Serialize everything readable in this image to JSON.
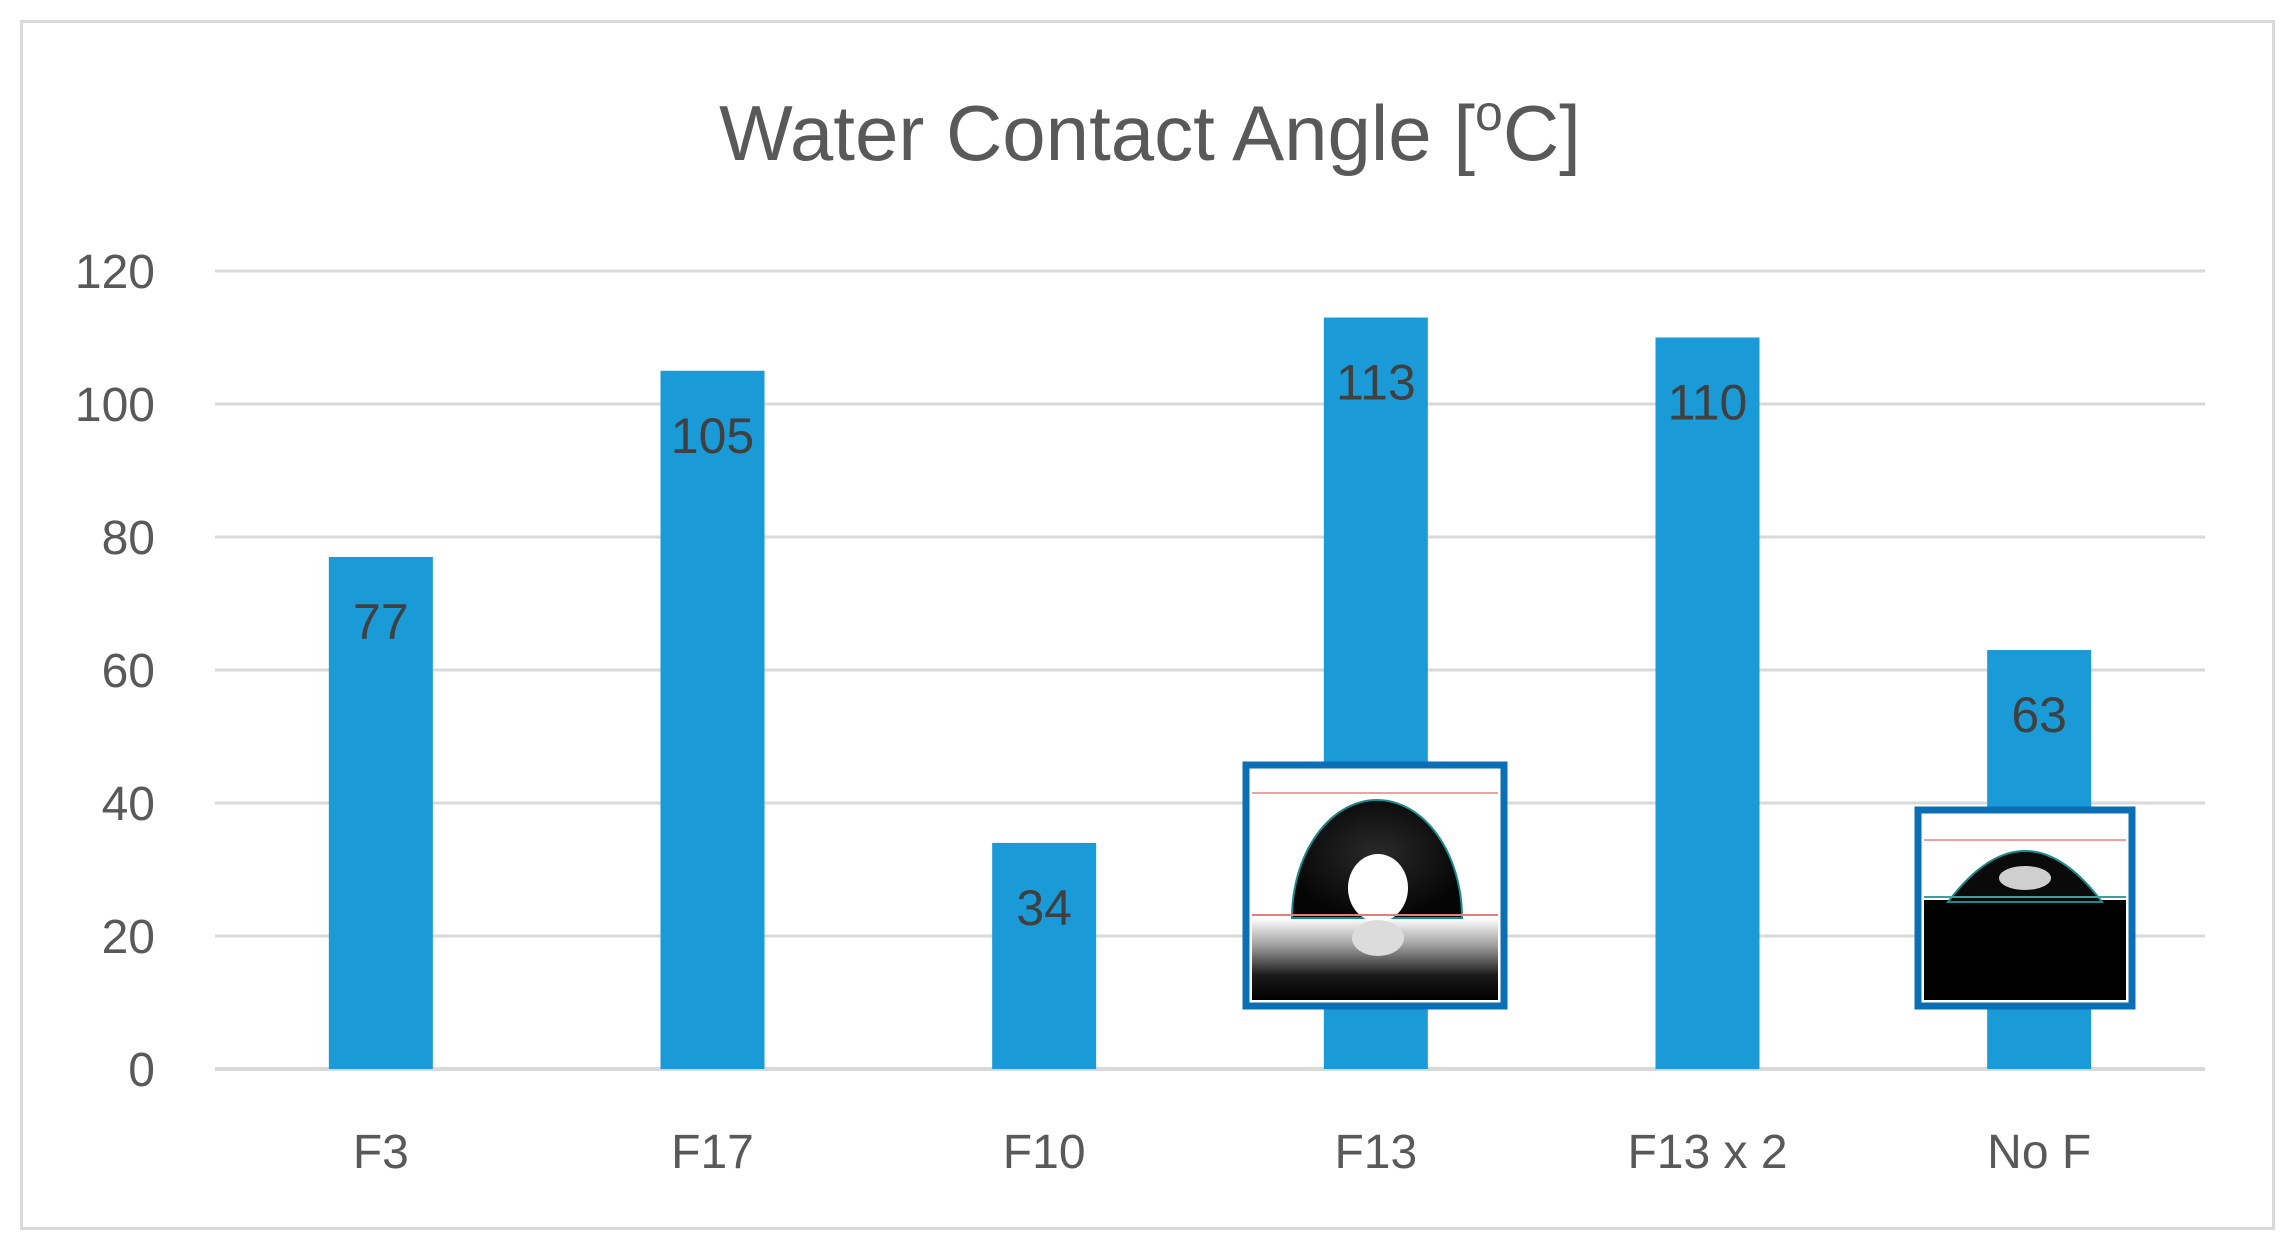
{
  "chart_data": {
    "type": "bar",
    "title_main": "Water Contact Angle [",
    "title_sup": "o",
    "title_end": "C]",
    "categories": [
      "F3",
      "F17",
      "F10",
      "F13",
      "F13 x 2",
      "No F"
    ],
    "values": [
      77,
      105,
      34,
      113,
      110,
      63
    ],
    "ylim": [
      0,
      120
    ],
    "yticks": [
      0,
      20,
      40,
      60,
      80,
      100,
      120
    ],
    "grid": true,
    "legend": "none",
    "bar_color": "#1a9ad6",
    "inset_images": [
      {
        "category": "F13",
        "depicts": "water-droplet-high-contact-angle"
      },
      {
        "category": "No F",
        "depicts": "water-droplet-low-contact-angle"
      }
    ]
  },
  "colors": {
    "bar": "#1a9ad6",
    "grid": "#d9d9d9",
    "inset_border": "#0a6fb4",
    "text": "#595959"
  }
}
